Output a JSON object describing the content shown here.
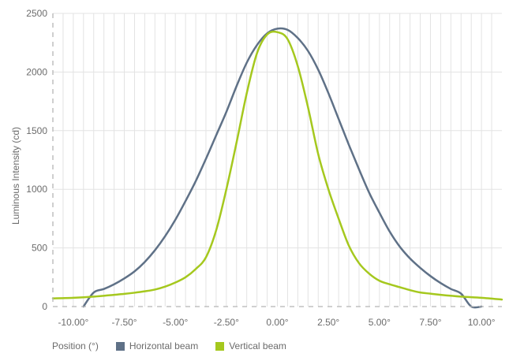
{
  "chart_data": {
    "type": "line",
    "title": "",
    "xlabel": "Position (°)",
    "ylabel": "Luminous Intensity (cd)",
    "xlim": [
      -11,
      11
    ],
    "ylim": [
      0,
      2500
    ],
    "grid": true,
    "legend_position": "bottom",
    "x_ticks": [
      -10,
      -7.5,
      -5,
      -2.5,
      0,
      2.5,
      5,
      7.5,
      10
    ],
    "x_tick_labels": [
      "-10.00°",
      "-7.50°",
      "-5.00°",
      "-2.50°",
      "0.00°",
      "2.50°",
      "5.00°",
      "7.50°",
      "10.00°"
    ],
    "y_ticks": [
      0,
      500,
      1000,
      1500,
      2000,
      2500
    ],
    "y_tick_labels": [
      "0",
      "500",
      "1000",
      "1500",
      "2000",
      "2500"
    ],
    "series": [
      {
        "name": "Horizontal beam",
        "color": "#5f7187",
        "x": [
          -9.5,
          -9,
          -8.5,
          -8,
          -7.5,
          -7,
          -6.5,
          -6,
          -5.5,
          -5,
          -4.5,
          -4,
          -3.5,
          -3,
          -2.5,
          -2,
          -1.5,
          -1,
          -0.5,
          0,
          0.5,
          1,
          1.5,
          2,
          2.5,
          3,
          3.5,
          4,
          4.5,
          5,
          5.5,
          6,
          6.5,
          7,
          7.5,
          8,
          8.5,
          9,
          9.5,
          10
        ],
        "y": [
          0,
          120,
          150,
          190,
          240,
          300,
          380,
          480,
          600,
          740,
          900,
          1070,
          1260,
          1460,
          1660,
          1880,
          2080,
          2230,
          2330,
          2370,
          2360,
          2290,
          2180,
          2020,
          1820,
          1600,
          1380,
          1170,
          970,
          800,
          640,
          510,
          410,
          330,
          260,
          200,
          150,
          110,
          0,
          0
        ]
      },
      {
        "name": "Vertical beam",
        "color": "#a5c81e",
        "x": [
          -11,
          -10,
          -9,
          -8,
          -7.5,
          -7,
          -6.5,
          -6,
          -5.5,
          -5,
          -4.5,
          -4,
          -3.5,
          -3,
          -2.5,
          -2,
          -1.5,
          -1,
          -0.5,
          0,
          0.5,
          1,
          1.5,
          2,
          2.5,
          3,
          3.5,
          4,
          4.5,
          5,
          5.5,
          6,
          6.5,
          7,
          7.5,
          8,
          9,
          10,
          11
        ],
        "y": [
          70,
          75,
          85,
          100,
          108,
          118,
          130,
          145,
          170,
          205,
          250,
          320,
          420,
          650,
          1000,
          1400,
          1820,
          2160,
          2320,
          2340,
          2280,
          2050,
          1700,
          1300,
          1000,
          750,
          520,
          370,
          280,
          220,
          190,
          165,
          140,
          120,
          110,
          100,
          85,
          75,
          60
        ]
      }
    ]
  }
}
